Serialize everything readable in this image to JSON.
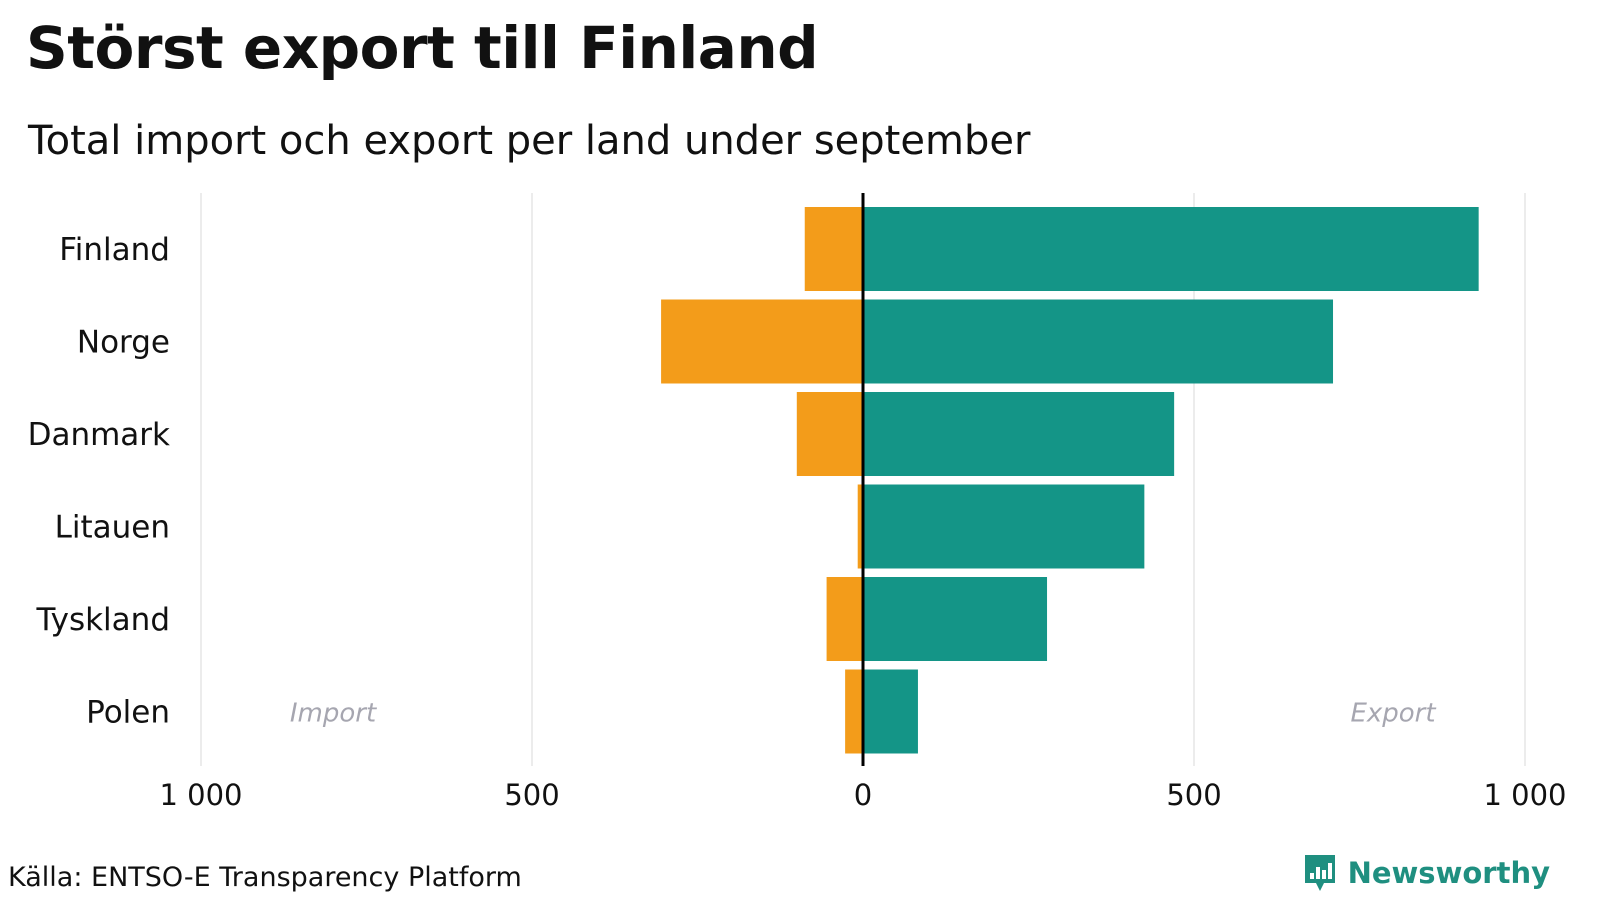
{
  "title": "Störst export till Finland",
  "subtitle": "Total import och export per land under september",
  "source": "Källa: ENTSO-E Transparency Platform",
  "brand": "Newsworthy",
  "colors": {
    "import": "#f39c1a",
    "export": "#149587",
    "grid": "#e6e6e6",
    "zero_line": "#000000",
    "annotation": "#a6a6b0",
    "brand": "#1f8f80"
  },
  "chart_data": {
    "type": "bar",
    "orientation": "horizontal-diverging",
    "categories": [
      "Finland",
      "Norge",
      "Danmark",
      "Litauen",
      "Tyskland",
      "Polen"
    ],
    "series": [
      {
        "name": "Import",
        "values": [
          88,
          305,
          100,
          8,
          55,
          27
        ]
      },
      {
        "name": "Export",
        "values": [
          930,
          710,
          470,
          425,
          278,
          83
        ]
      }
    ],
    "xlim": [
      -1000,
      1000
    ],
    "ticks": [
      -1000,
      -500,
      0,
      500,
      1000
    ],
    "tick_labels": [
      "1 000",
      "500",
      "0",
      "500",
      "1 000"
    ],
    "annotations": {
      "left": "Import",
      "right": "Export"
    },
    "grid": true,
    "legend": "none"
  }
}
